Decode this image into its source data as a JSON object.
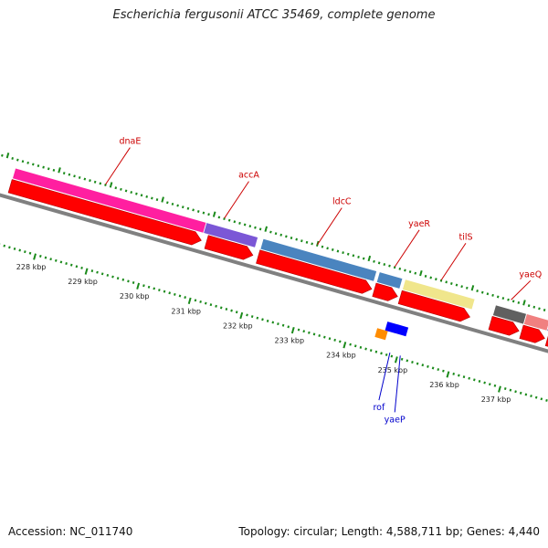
{
  "title": "Escherichia fergusonii ATCC 35469, complete genome",
  "footer": {
    "accession": "Accession: NC_011740",
    "topology": "Topology: circular; Length: 4,588,711 bp; Genes: 4,440"
  },
  "colors": {
    "cds_arrow": "#ff0000",
    "tick": "#1a8a1a",
    "backbone": "#808080",
    "label_top": "#cc0000",
    "label_bottom": "#0000cc"
  },
  "genes_top": [
    {
      "name": "dnaE",
      "start": 227.2,
      "end": 230.9,
      "color": "#ff1fa0"
    },
    {
      "name": "accA",
      "start": 230.9,
      "end": 231.9,
      "color": "#7b57d6"
    },
    {
      "name": "ldcC",
      "start": 232.0,
      "end": 234.2,
      "color": "#4a84bf"
    },
    {
      "name": "yaeR",
      "start": 234.25,
      "end": 234.7,
      "color": "#4a84bf"
    },
    {
      "name": "tilS",
      "start": 234.75,
      "end": 236.1,
      "color": "#f0e68c"
    },
    {
      "name": "yaeQ",
      "start": 236.5,
      "end": 237.1,
      "color": "#606060"
    },
    {
      "name": "",
      "start": 237.1,
      "end": 237.55,
      "color": "#f08080"
    },
    {
      "name": "",
      "start": 237.55,
      "end": 238.2,
      "color": "#5050a0"
    },
    {
      "name": "",
      "start": 237.6,
      "end": 238.2,
      "color": "#6b8e23"
    }
  ],
  "cds_arrows": [
    {
      "start": 227.2,
      "end": 230.9
    },
    {
      "start": 231.0,
      "end": 231.9
    },
    {
      "start": 232.0,
      "end": 234.2
    },
    {
      "start": 234.25,
      "end": 234.7
    },
    {
      "start": 234.75,
      "end": 236.1
    },
    {
      "start": 236.5,
      "end": 237.05
    },
    {
      "start": 237.1,
      "end": 237.55
    },
    {
      "start": 237.6,
      "end": 238.2
    }
  ],
  "genes_bottom": [
    {
      "name": "rof",
      "position": 234.75,
      "color": "#0000ff"
    },
    {
      "name": "yaeP",
      "position": 234.95,
      "color": "#0000ff"
    },
    {
      "name": "",
      "position": 234.6,
      "color": "#ff8c00"
    }
  ],
  "ticks": [
    "228 kbp",
    "229 kbp",
    "230 kbp",
    "231 kbp",
    "232 kbp",
    "233 kbp",
    "234 kbp",
    "235 kbp",
    "236 kbp",
    "237 kbp"
  ]
}
